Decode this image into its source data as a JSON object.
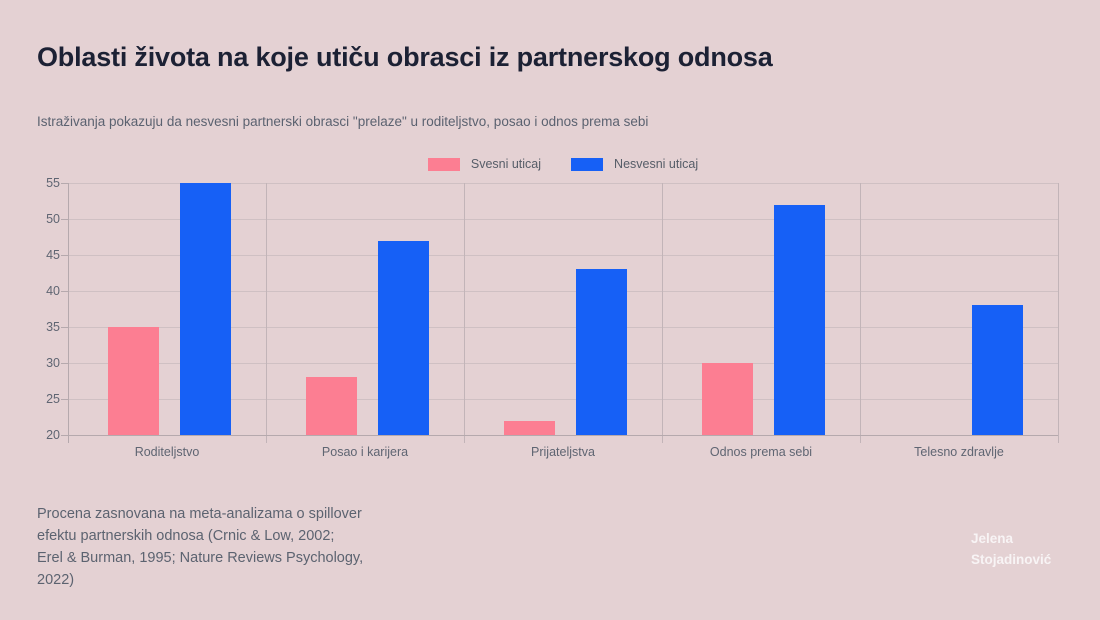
{
  "header": {
    "title": "Oblasti života na koje utiču obrasci iz partnerskog odnosa",
    "subtitle": "Istraživanja pokazuju da nesvesni partnerski obrasci \"prelaze\" u roditeljstvo, posao i odnos prema sebi"
  },
  "chart_data": {
    "type": "bar",
    "title": "Oblasti života na koje utiču obrasci iz partnerskog odnosa",
    "categories": [
      "Roditeljstvo",
      "Posao i karijera",
      "Prijateljstva",
      "Odnos prema sebi",
      "Telesno zdravlje"
    ],
    "series": [
      {
        "name": "Svesni uticaj",
        "color": "#fc7e92",
        "values": [
          35,
          28,
          22,
          30,
          null
        ]
      },
      {
        "name": "Nesvesni uticaj",
        "color": "#1660f6",
        "values": [
          55,
          47,
          43,
          52,
          38
        ]
      }
    ],
    "ylim": [
      20,
      55
    ],
    "yticks": [
      20,
      25,
      30,
      35,
      40,
      45,
      50,
      55
    ],
    "grid": true,
    "legend_position": "top-center",
    "xlabel": "",
    "ylabel": ""
  },
  "footer": {
    "note_lines": [
      "Procena zasnovana na meta-analizama o spillover",
      "efektu partnerskih odnosa (Crnic & Low, 2002;",
      "Erel & Burman, 1995; Nature Reviews Psychology,",
      "2022)"
    ],
    "author_line1": "Jelena",
    "author_line2": "Stojadinović"
  },
  "colors": {
    "background": "#e4d1d3",
    "title_text": "#1c2134",
    "muted_text": "#5c6370",
    "axis_text": "#5f6572",
    "gridline": "#cfc0c3",
    "axis_line": "#b5a9ad",
    "series_pink": "#fc7e92",
    "series_blue": "#1660f6",
    "signature_text": "#f8f4f5"
  }
}
